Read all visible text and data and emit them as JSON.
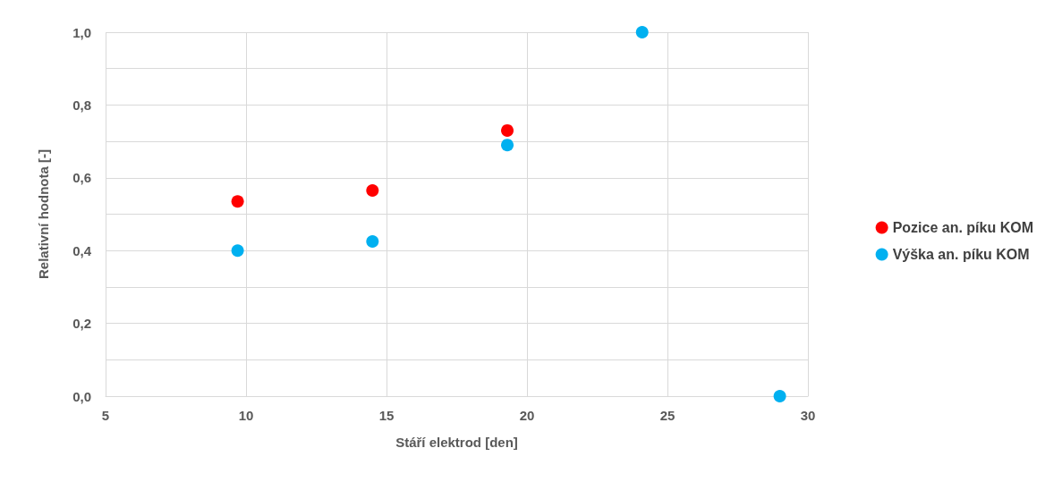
{
  "chart_data": {
    "type": "scatter",
    "xlabel": "Stáří elektrod [den]",
    "ylabel": "Relativní hodnota [-]",
    "series": [
      {
        "name": "Pozice an. píku KOM",
        "color": "#ff0000",
        "x": [
          9.7,
          14.5,
          19.3
        ],
        "values": [
          0.535,
          0.565,
          0.73
        ]
      },
      {
        "name": "Výška an. píku KOM",
        "color": "#00b0f0",
        "x": [
          9.7,
          14.5,
          19.3,
          24.1,
          29.0
        ],
        "values": [
          0.4,
          0.425,
          0.69,
          1.0,
          0.0
        ]
      }
    ],
    "xlim": [
      5,
      30
    ],
    "xticks": [
      5,
      10,
      15,
      20,
      25,
      30
    ],
    "ylim": [
      0,
      1
    ],
    "yticks": [
      {
        "value": 0,
        "label": "0,0"
      },
      {
        "value": 0.1,
        "label": null
      },
      {
        "value": 0.2,
        "label": "0,2"
      },
      {
        "value": 0.3,
        "label": null
      },
      {
        "value": 0.4,
        "label": "0,4"
      },
      {
        "value": 0.5,
        "label": null
      },
      {
        "value": 0.6,
        "label": "0,6"
      },
      {
        "value": 0.7,
        "label": null
      },
      {
        "value": 0.8,
        "label": "0,8"
      },
      {
        "value": 0.9,
        "label": null
      },
      {
        "value": 1,
        "label": "1,0"
      }
    ],
    "grid": true,
    "legend": "right",
    "marker": "circle"
  }
}
